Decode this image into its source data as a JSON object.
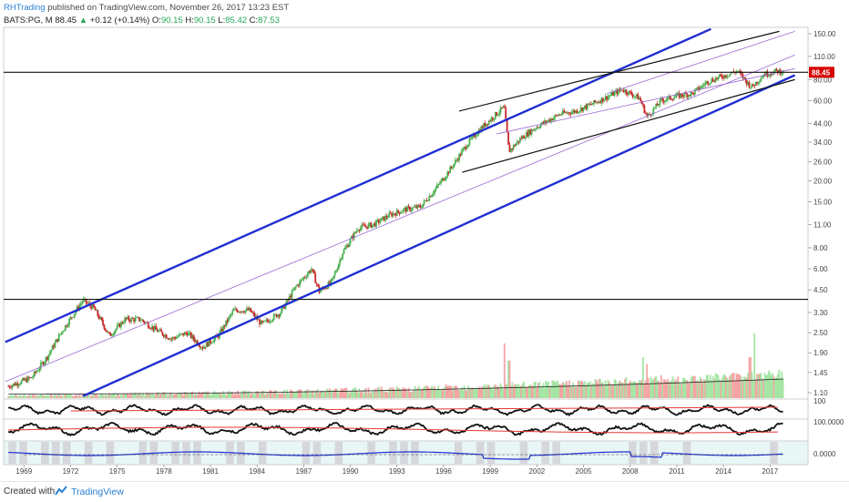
{
  "header": {
    "publisher": "RHTrading",
    "published_text": "published on TradingView.com, November 26, 2017 13:23 EST",
    "symbol": "BATS:PG, M",
    "last": "88.45",
    "change_arrow": "▲",
    "change": "+0.12 (+0.14%)",
    "open_label": "O:",
    "open": "90.15",
    "high_label": "H:",
    "high": "90.15",
    "low_label": "L:",
    "low": "85.42",
    "close_label": "C:",
    "close": "87.53"
  },
  "footer": {
    "created_with": "Created with",
    "brand": "TradingView"
  },
  "colors": {
    "up": "#4caf50",
    "down": "#c62828",
    "channel_blue": "#1f2fd1",
    "fan_purple": "#9c6ad6",
    "resistance_black": "#111111",
    "volume_up": "#a5e6a5",
    "volume_down": "#f5a5a5",
    "last_price_badge": "#d50000"
  },
  "chart_data": {
    "type": "candlestick",
    "timeframe": "monthly",
    "y_scale": "log",
    "y_axis_ticks": [
      "150.00",
      "110.00",
      "80.00",
      "60.00",
      "44.00",
      "34.00",
      "26.00",
      "20.00",
      "15.00",
      "11.00",
      "8.00",
      "6.00",
      "4.50",
      "3.30",
      "2.50",
      "1.90",
      "1.45",
      "1.10"
    ],
    "x_axis_ticks": [
      "1969",
      "1972",
      "1975",
      "1978",
      "1981",
      "1984",
      "1987",
      "1990",
      "1993",
      "1996",
      "1999",
      "2002",
      "2005",
      "2008",
      "2011",
      "2014",
      "2017"
    ],
    "last_price_label": "88.45",
    "price_path": [
      [
        1968.0,
        1.2
      ],
      [
        1969.5,
        1.35
      ],
      [
        1970.5,
        1.8
      ],
      [
        1971.5,
        2.6
      ],
      [
        1972.8,
        3.9
      ],
      [
        1973.5,
        3.5
      ],
      [
        1974.5,
        2.4
      ],
      [
        1975.5,
        3.0
      ],
      [
        1976.5,
        3.0
      ],
      [
        1977.5,
        2.6
      ],
      [
        1978.5,
        2.3
      ],
      [
        1979.5,
        2.5
      ],
      [
        1980.5,
        2.05
      ],
      [
        1981.5,
        2.4
      ],
      [
        1982.5,
        3.4
      ],
      [
        1983.5,
        3.4
      ],
      [
        1984.3,
        2.8
      ],
      [
        1985.5,
        3.3
      ],
      [
        1986.5,
        4.7
      ],
      [
        1987.5,
        6.0
      ],
      [
        1988.0,
        4.4
      ],
      [
        1988.8,
        5.0
      ],
      [
        1989.5,
        7.5
      ],
      [
        1990.5,
        10.5
      ],
      [
        1991.5,
        11.0
      ],
      [
        1992.5,
        12.5
      ],
      [
        1993.5,
        13.5
      ],
      [
        1994.5,
        14.0
      ],
      [
        1995.5,
        18.0
      ],
      [
        1996.5,
        24.0
      ],
      [
        1997.5,
        33.0
      ],
      [
        1998.5,
        42.0
      ],
      [
        1999.9,
        55.0
      ],
      [
        2000.2,
        30.0
      ],
      [
        2001.0,
        36.0
      ],
      [
        2002.0,
        42.0
      ],
      [
        2003.5,
        50.0
      ],
      [
        2004.5,
        52.0
      ],
      [
        2005.5,
        57.0
      ],
      [
        2006.5,
        63.0
      ],
      [
        2007.5,
        70.0
      ],
      [
        2008.6,
        62.0
      ],
      [
        2009.1,
        48.0
      ],
      [
        2010.0,
        60.0
      ],
      [
        2011.0,
        64.0
      ],
      [
        2012.0,
        66.0
      ],
      [
        2013.0,
        78.0
      ],
      [
        2014.9,
        90.0
      ],
      [
        2015.8,
        72.0
      ],
      [
        2016.6,
        86.0
      ],
      [
        2017.5,
        90.0
      ],
      [
        2017.9,
        88.45
      ]
    ],
    "volume_spikes": [
      [
        1999.9,
        0.8
      ],
      [
        2000.2,
        0.55
      ],
      [
        2008.8,
        0.6
      ],
      [
        2009.1,
        0.5
      ],
      [
        2016.0,
        0.95
      ],
      [
        2015.7,
        0.6
      ]
    ],
    "trendlines": [
      {
        "color": "channel_blue",
        "from": [
          1967.8,
          2.2
        ],
        "to": [
          2013.2,
          160.0
        ]
      },
      {
        "color": "channel_blue",
        "from": [
          1972.8,
          1.05
        ],
        "to": [
          2018.6,
          85.0
        ]
      },
      {
        "color": "fan_purple",
        "from": [
          1967.8,
          1.28
        ],
        "to": [
          2018.6,
          112.0
        ]
      },
      {
        "color": "fan_purple",
        "from": [
          1999.4,
          38.0
        ],
        "to": [
          2018.6,
          93.0
        ]
      },
      {
        "color": "fan_purple",
        "from": [
          2006.5,
          66.0
        ],
        "to": [
          2018.6,
          155.0
        ]
      },
      {
        "color": "resistance_black",
        "from": [
          1997.0,
          52.0
        ],
        "to": [
          2017.6,
          155.0
        ]
      },
      {
        "color": "resistance_black",
        "from": [
          1997.2,
          22.5
        ],
        "to": [
          2018.6,
          80.0
        ]
      }
    ],
    "horizontal_levels": [
      88.45,
      3.95
    ]
  }
}
